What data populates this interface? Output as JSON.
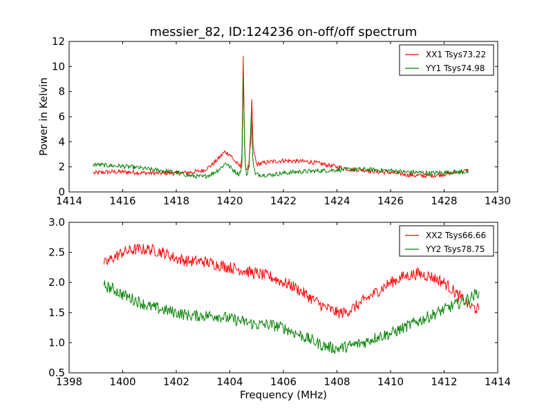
{
  "chart_data": [
    {
      "type": "line",
      "title": "messier_82, ID:124236 on-off/off spectrum",
      "xlabel": "",
      "ylabel": "Power in Kelvin",
      "xlim": [
        1414,
        1430
      ],
      "ylim": [
        0,
        12
      ],
      "x_ticks": [
        "1414",
        "1416",
        "1418",
        "1420",
        "1422",
        "1424",
        "1426",
        "1428",
        "1430"
      ],
      "y_ticks": [
        "0",
        "2",
        "4",
        "6",
        "8",
        "10",
        "12"
      ],
      "grid": false,
      "legend_position": "top-right",
      "series": [
        {
          "name": "XX1 Tsys73.22",
          "color": "#ff0000",
          "points": [
            [
              1414.9,
              1.5
            ],
            [
              1415.5,
              1.6
            ],
            [
              1416.0,
              1.6
            ],
            [
              1416.5,
              1.55
            ],
            [
              1417.0,
              1.5
            ],
            [
              1417.5,
              1.5
            ],
            [
              1418.0,
              1.5
            ],
            [
              1418.5,
              1.55
            ],
            [
              1419.0,
              1.7
            ],
            [
              1419.3,
              2.1
            ],
            [
              1419.6,
              2.7
            ],
            [
              1419.8,
              3.2
            ],
            [
              1420.0,
              3.0
            ],
            [
              1420.2,
              2.4
            ],
            [
              1420.4,
              2.0
            ],
            [
              1420.45,
              3.0
            ],
            [
              1420.5,
              10.8
            ],
            [
              1420.55,
              3.5
            ],
            [
              1420.6,
              1.8
            ],
            [
              1420.7,
              2.0
            ],
            [
              1420.78,
              4.0
            ],
            [
              1420.82,
              7.4
            ],
            [
              1420.87,
              3.5
            ],
            [
              1421.0,
              2.2
            ],
            [
              1421.5,
              2.4
            ],
            [
              1422.0,
              2.5
            ],
            [
              1422.5,
              2.45
            ],
            [
              1423.0,
              2.4
            ],
            [
              1423.5,
              2.2
            ],
            [
              1424.0,
              2.0
            ],
            [
              1424.5,
              1.8
            ],
            [
              1425.0,
              1.75
            ],
            [
              1425.5,
              1.6
            ],
            [
              1426.0,
              1.55
            ],
            [
              1426.5,
              1.4
            ],
            [
              1427.0,
              1.3
            ],
            [
              1427.5,
              1.3
            ],
            [
              1428.0,
              1.4
            ],
            [
              1428.5,
              1.6
            ],
            [
              1428.9,
              1.7
            ]
          ]
        },
        {
          "name": "YY1 Tsys74.98",
          "color": "#008000",
          "points": [
            [
              1414.9,
              2.2
            ],
            [
              1415.5,
              2.1
            ],
            [
              1416.0,
              2.05
            ],
            [
              1416.5,
              1.95
            ],
            [
              1417.0,
              1.8
            ],
            [
              1417.5,
              1.7
            ],
            [
              1418.0,
              1.55
            ],
            [
              1418.5,
              1.3
            ],
            [
              1419.0,
              1.2
            ],
            [
              1419.3,
              1.4
            ],
            [
              1419.6,
              1.8
            ],
            [
              1419.85,
              2.3
            ],
            [
              1420.1,
              1.8
            ],
            [
              1420.35,
              1.4
            ],
            [
              1420.45,
              2.0
            ],
            [
              1420.5,
              9.3
            ],
            [
              1420.56,
              3.0
            ],
            [
              1420.62,
              1.3
            ],
            [
              1420.72,
              2.0
            ],
            [
              1420.8,
              6.3
            ],
            [
              1420.86,
              2.5
            ],
            [
              1420.95,
              1.4
            ],
            [
              1421.5,
              1.35
            ],
            [
              1422.0,
              1.5
            ],
            [
              1422.5,
              1.6
            ],
            [
              1423.0,
              1.65
            ],
            [
              1423.5,
              1.7
            ],
            [
              1424.0,
              1.75
            ],
            [
              1424.5,
              1.8
            ],
            [
              1425.0,
              1.8
            ],
            [
              1425.5,
              1.75
            ],
            [
              1426.0,
              1.7
            ],
            [
              1426.5,
              1.6
            ],
            [
              1427.0,
              1.55
            ],
            [
              1427.5,
              1.5
            ],
            [
              1428.0,
              1.55
            ],
            [
              1428.5,
              1.6
            ],
            [
              1428.9,
              1.6
            ]
          ]
        }
      ]
    },
    {
      "type": "line",
      "title": "",
      "xlabel": "Frequency (MHz)",
      "ylabel": "",
      "xlim": [
        1398,
        1414
      ],
      "ylim": [
        0.5,
        3.0
      ],
      "x_ticks": [
        "1398",
        "1400",
        "1402",
        "1404",
        "1406",
        "1408",
        "1410",
        "1412",
        "1414"
      ],
      "y_ticks": [
        "0.5",
        "1.0",
        "1.5",
        "2.0",
        "2.5",
        "3.0"
      ],
      "grid": false,
      "legend_position": "top-right",
      "series": [
        {
          "name": "XX2 Tsys66.66",
          "color": "#ff0000",
          "points": [
            [
              1399.3,
              2.3
            ],
            [
              1399.6,
              2.4
            ],
            [
              1400.0,
              2.5
            ],
            [
              1400.5,
              2.55
            ],
            [
              1401.0,
              2.55
            ],
            [
              1401.5,
              2.5
            ],
            [
              1402.0,
              2.4
            ],
            [
              1402.5,
              2.35
            ],
            [
              1403.0,
              2.35
            ],
            [
              1403.5,
              2.3
            ],
            [
              1404.0,
              2.25
            ],
            [
              1404.5,
              2.2
            ],
            [
              1405.0,
              2.15
            ],
            [
              1405.5,
              2.1
            ],
            [
              1406.0,
              2.0
            ],
            [
              1406.3,
              1.95
            ],
            [
              1406.5,
              1.9
            ],
            [
              1407.0,
              1.75
            ],
            [
              1407.5,
              1.6
            ],
            [
              1408.0,
              1.5
            ],
            [
              1408.3,
              1.5
            ],
            [
              1408.7,
              1.6
            ],
            [
              1409.0,
              1.7
            ],
            [
              1409.5,
              1.85
            ],
            [
              1410.0,
              2.0
            ],
            [
              1410.5,
              2.1
            ],
            [
              1411.0,
              2.15
            ],
            [
              1411.5,
              2.1
            ],
            [
              1412.0,
              2.0
            ],
            [
              1412.5,
              1.8
            ],
            [
              1413.0,
              1.6
            ],
            [
              1413.3,
              1.55
            ]
          ]
        },
        {
          "name": "YY2 Tsys78.75",
          "color": "#008000",
          "points": [
            [
              1399.3,
              1.95
            ],
            [
              1399.6,
              1.9
            ],
            [
              1400.0,
              1.8
            ],
            [
              1400.5,
              1.7
            ],
            [
              1401.0,
              1.6
            ],
            [
              1401.5,
              1.55
            ],
            [
              1402.0,
              1.5
            ],
            [
              1402.5,
              1.45
            ],
            [
              1403.0,
              1.45
            ],
            [
              1403.5,
              1.45
            ],
            [
              1404.0,
              1.4
            ],
            [
              1404.5,
              1.35
            ],
            [
              1405.0,
              1.3
            ],
            [
              1405.5,
              1.3
            ],
            [
              1406.0,
              1.25
            ],
            [
              1406.5,
              1.15
            ],
            [
              1407.0,
              1.05
            ],
            [
              1407.5,
              0.95
            ],
            [
              1408.0,
              0.9
            ],
            [
              1408.5,
              0.95
            ],
            [
              1409.0,
              1.0
            ],
            [
              1409.5,
              1.1
            ],
            [
              1410.0,
              1.15
            ],
            [
              1410.5,
              1.25
            ],
            [
              1411.0,
              1.35
            ],
            [
              1411.5,
              1.45
            ],
            [
              1412.0,
              1.55
            ],
            [
              1412.5,
              1.65
            ],
            [
              1413.0,
              1.75
            ],
            [
              1413.3,
              1.85
            ]
          ]
        }
      ]
    }
  ]
}
